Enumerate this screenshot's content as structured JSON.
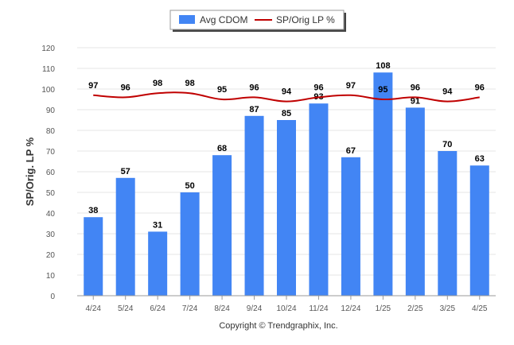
{
  "chart_data": {
    "type": "bar",
    "categories": [
      "4/24",
      "5/24",
      "6/24",
      "7/24",
      "8/24",
      "9/24",
      "10/24",
      "11/24",
      "12/24",
      "1/25",
      "2/25",
      "3/25",
      "4/25"
    ],
    "series": [
      {
        "name": "Avg CDOM",
        "type": "bar",
        "color": "#4285f4",
        "values": [
          38,
          57,
          31,
          50,
          68,
          87,
          85,
          93,
          67,
          108,
          91,
          70,
          63
        ]
      },
      {
        "name": "SP/Orig LP %",
        "type": "line",
        "color": "#c00000",
        "values": [
          97,
          96,
          98,
          98,
          95,
          96,
          94,
          96,
          97,
          95,
          96,
          94,
          96
        ]
      }
    ],
    "ylabel": "SP/Orig. LP %",
    "ylim": [
      0,
      120
    ],
    "yticks": [
      0,
      10,
      20,
      30,
      40,
      50,
      60,
      70,
      80,
      90,
      100,
      110,
      120
    ],
    "grid": true,
    "legend_position": "top-center"
  },
  "legend": {
    "bar_label": "Avg CDOM",
    "line_label": "SP/Orig LP %"
  },
  "footer": {
    "copyright": "Copyright © Trendgraphix, Inc."
  }
}
